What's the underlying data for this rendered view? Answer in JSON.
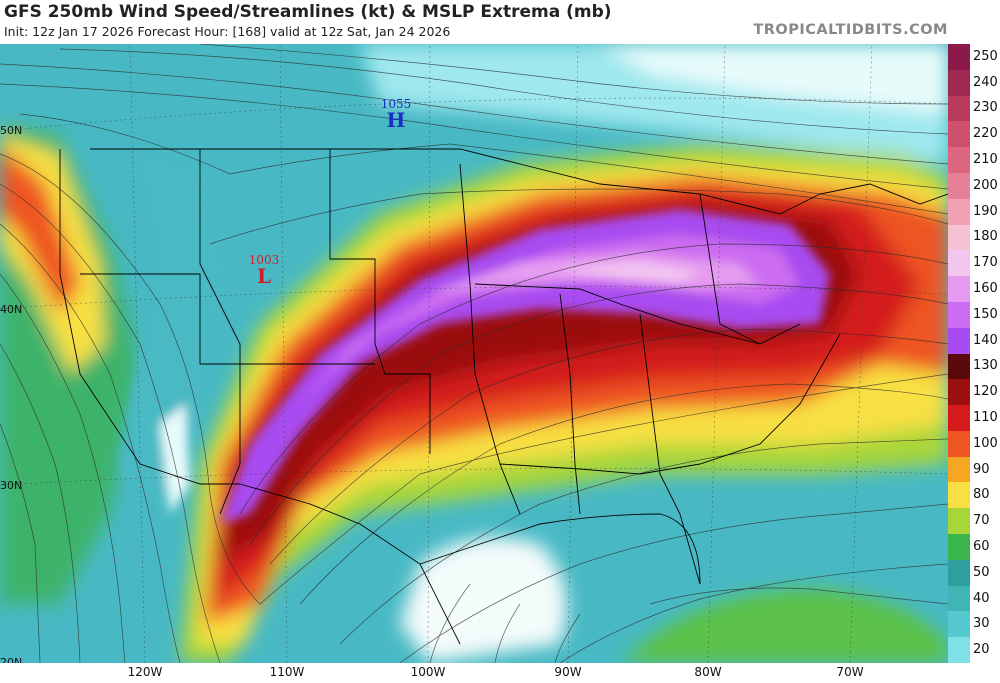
{
  "header": {
    "title": "GFS 250mb Wind Speed/Streamlines (kt) & MSLP Extrema (mb)",
    "subtitle": "Init: 12z Jan 17 2026   Forecast Hour: [168]   valid at 12z Sat, Jan 24 2026",
    "brand": "TROPICALTIDBITS.COM"
  },
  "axes": {
    "latitudes": [
      "50N",
      "40N",
      "30N",
      "20N"
    ],
    "longitudes": [
      "120W",
      "110W",
      "100W",
      "90W",
      "80W",
      "70W"
    ]
  },
  "colorbar": {
    "labels": [
      "250",
      "240",
      "230",
      "220",
      "210",
      "200",
      "190",
      "180",
      "170",
      "160",
      "150",
      "140",
      "130",
      "120",
      "110",
      "100",
      "90",
      "80",
      "70",
      "60",
      "50",
      "40",
      "30",
      "20"
    ],
    "colors": [
      "#8b1a4a",
      "#a02850",
      "#b83a5c",
      "#cc4f6c",
      "#dc6680",
      "#e68098",
      "#f0a2b4",
      "#f6c2d2",
      "#f3c6f0",
      "#e59cf0",
      "#cc6cf0",
      "#a84cf0",
      "#5a0a0a",
      "#9b0f0f",
      "#d41a1a",
      "#ee5520",
      "#f5a623",
      "#f8e043",
      "#a7d63a",
      "#39b54a",
      "#2e9e9e",
      "#3fb5b5",
      "#55c9d0",
      "#7fe0e8"
    ]
  },
  "markers": [
    {
      "type": "H",
      "value": "1055",
      "color": "#1a2fbf"
    },
    {
      "type": "L",
      "value": "1003",
      "color": "#cc1f2a"
    }
  ]
}
